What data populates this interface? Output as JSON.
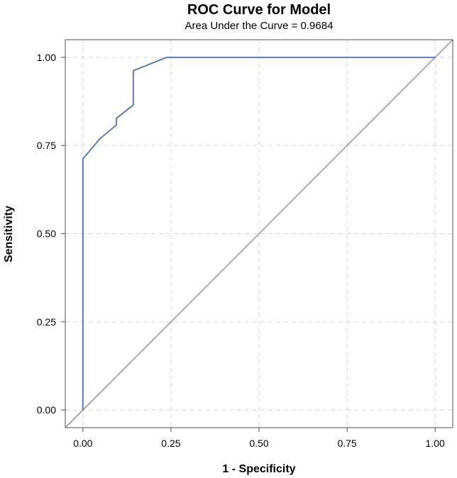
{
  "chart_data": {
    "type": "line",
    "title": "ROC Curve for Model",
    "subtitle": "Area Under the Curve = 0.9684",
    "xlabel": "1 - Specificity",
    "ylabel": "Sensitivity",
    "xlim": [
      -0.05,
      1.05
    ],
    "ylim": [
      -0.05,
      1.05
    ],
    "x_ticks": [
      0,
      0.25,
      0.5,
      0.75,
      1
    ],
    "x_tick_labels": [
      "0.00",
      "0.25",
      "0.50",
      "0.75",
      "1.00"
    ],
    "y_ticks": [
      0,
      0.25,
      0.5,
      0.75,
      1
    ],
    "y_tick_labels": [
      "0.00",
      "0.25",
      "0.50",
      "0.75",
      "1.00"
    ],
    "grid": true,
    "series": [
      {
        "role": "roc-curve",
        "color": "#4f6fb4",
        "x": [
          0,
          0,
          0.048,
          0.095,
          0.095,
          0.143,
          0.143,
          0.19,
          0.238,
          1.0
        ],
        "y": [
          0,
          0.712,
          0.769,
          0.808,
          0.827,
          0.865,
          0.962,
          0.981,
          1.0,
          1.0
        ]
      },
      {
        "role": "reference-diagonal",
        "color": "#9a9a9a",
        "x": [
          -0.05,
          1.05
        ],
        "y": [
          -0.05,
          1.05
        ]
      }
    ]
  }
}
